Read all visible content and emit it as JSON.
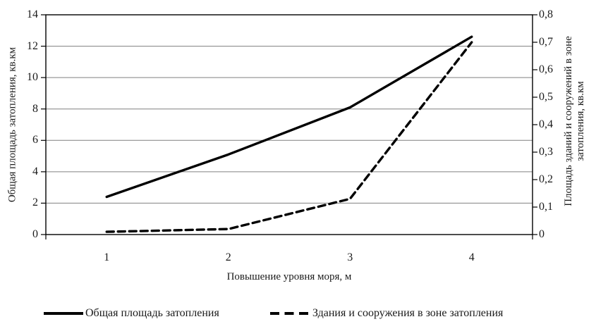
{
  "chart_data": {
    "type": "line",
    "x": [
      1,
      2,
      3,
      4
    ],
    "x_tick_labels": [
      "1",
      "2",
      "3",
      "4"
    ],
    "xlabel": "Повышение уровня моря, м",
    "left_axis": {
      "title": "Общая площадь затопления, кв.км",
      "min": 0,
      "max": 14,
      "step": 2,
      "tick_labels": [
        "0",
        "2",
        "4",
        "6",
        "8",
        "10",
        "12",
        "14"
      ]
    },
    "right_axis": {
      "title_line1": "Площадь зданий и сооружений в зоне",
      "title_line2": "затопления, кв.км",
      "min": 0,
      "max": 0.8,
      "step": 0.1,
      "tick_labels": [
        "0",
        "0,1",
        "0,2",
        "0,3",
        "0,4",
        "0,5",
        "0,6",
        "0,7",
        "0,8"
      ]
    },
    "series": [
      {
        "name": "Общая площадь затопления",
        "axis": "left",
        "style": "solid",
        "values": [
          2.4,
          5.1,
          8.1,
          12.6
        ]
      },
      {
        "name": "Здания и сооружения в зоне затопления",
        "axis": "right",
        "style": "dashed",
        "values": [
          0.01,
          0.02,
          0.13,
          0.7
        ]
      }
    ],
    "legend_position": "bottom",
    "grid": "horizontal",
    "colors": {
      "line": "#000000",
      "grid": "#808080",
      "text": "#1a1a1a",
      "background": "#ffffff"
    }
  }
}
